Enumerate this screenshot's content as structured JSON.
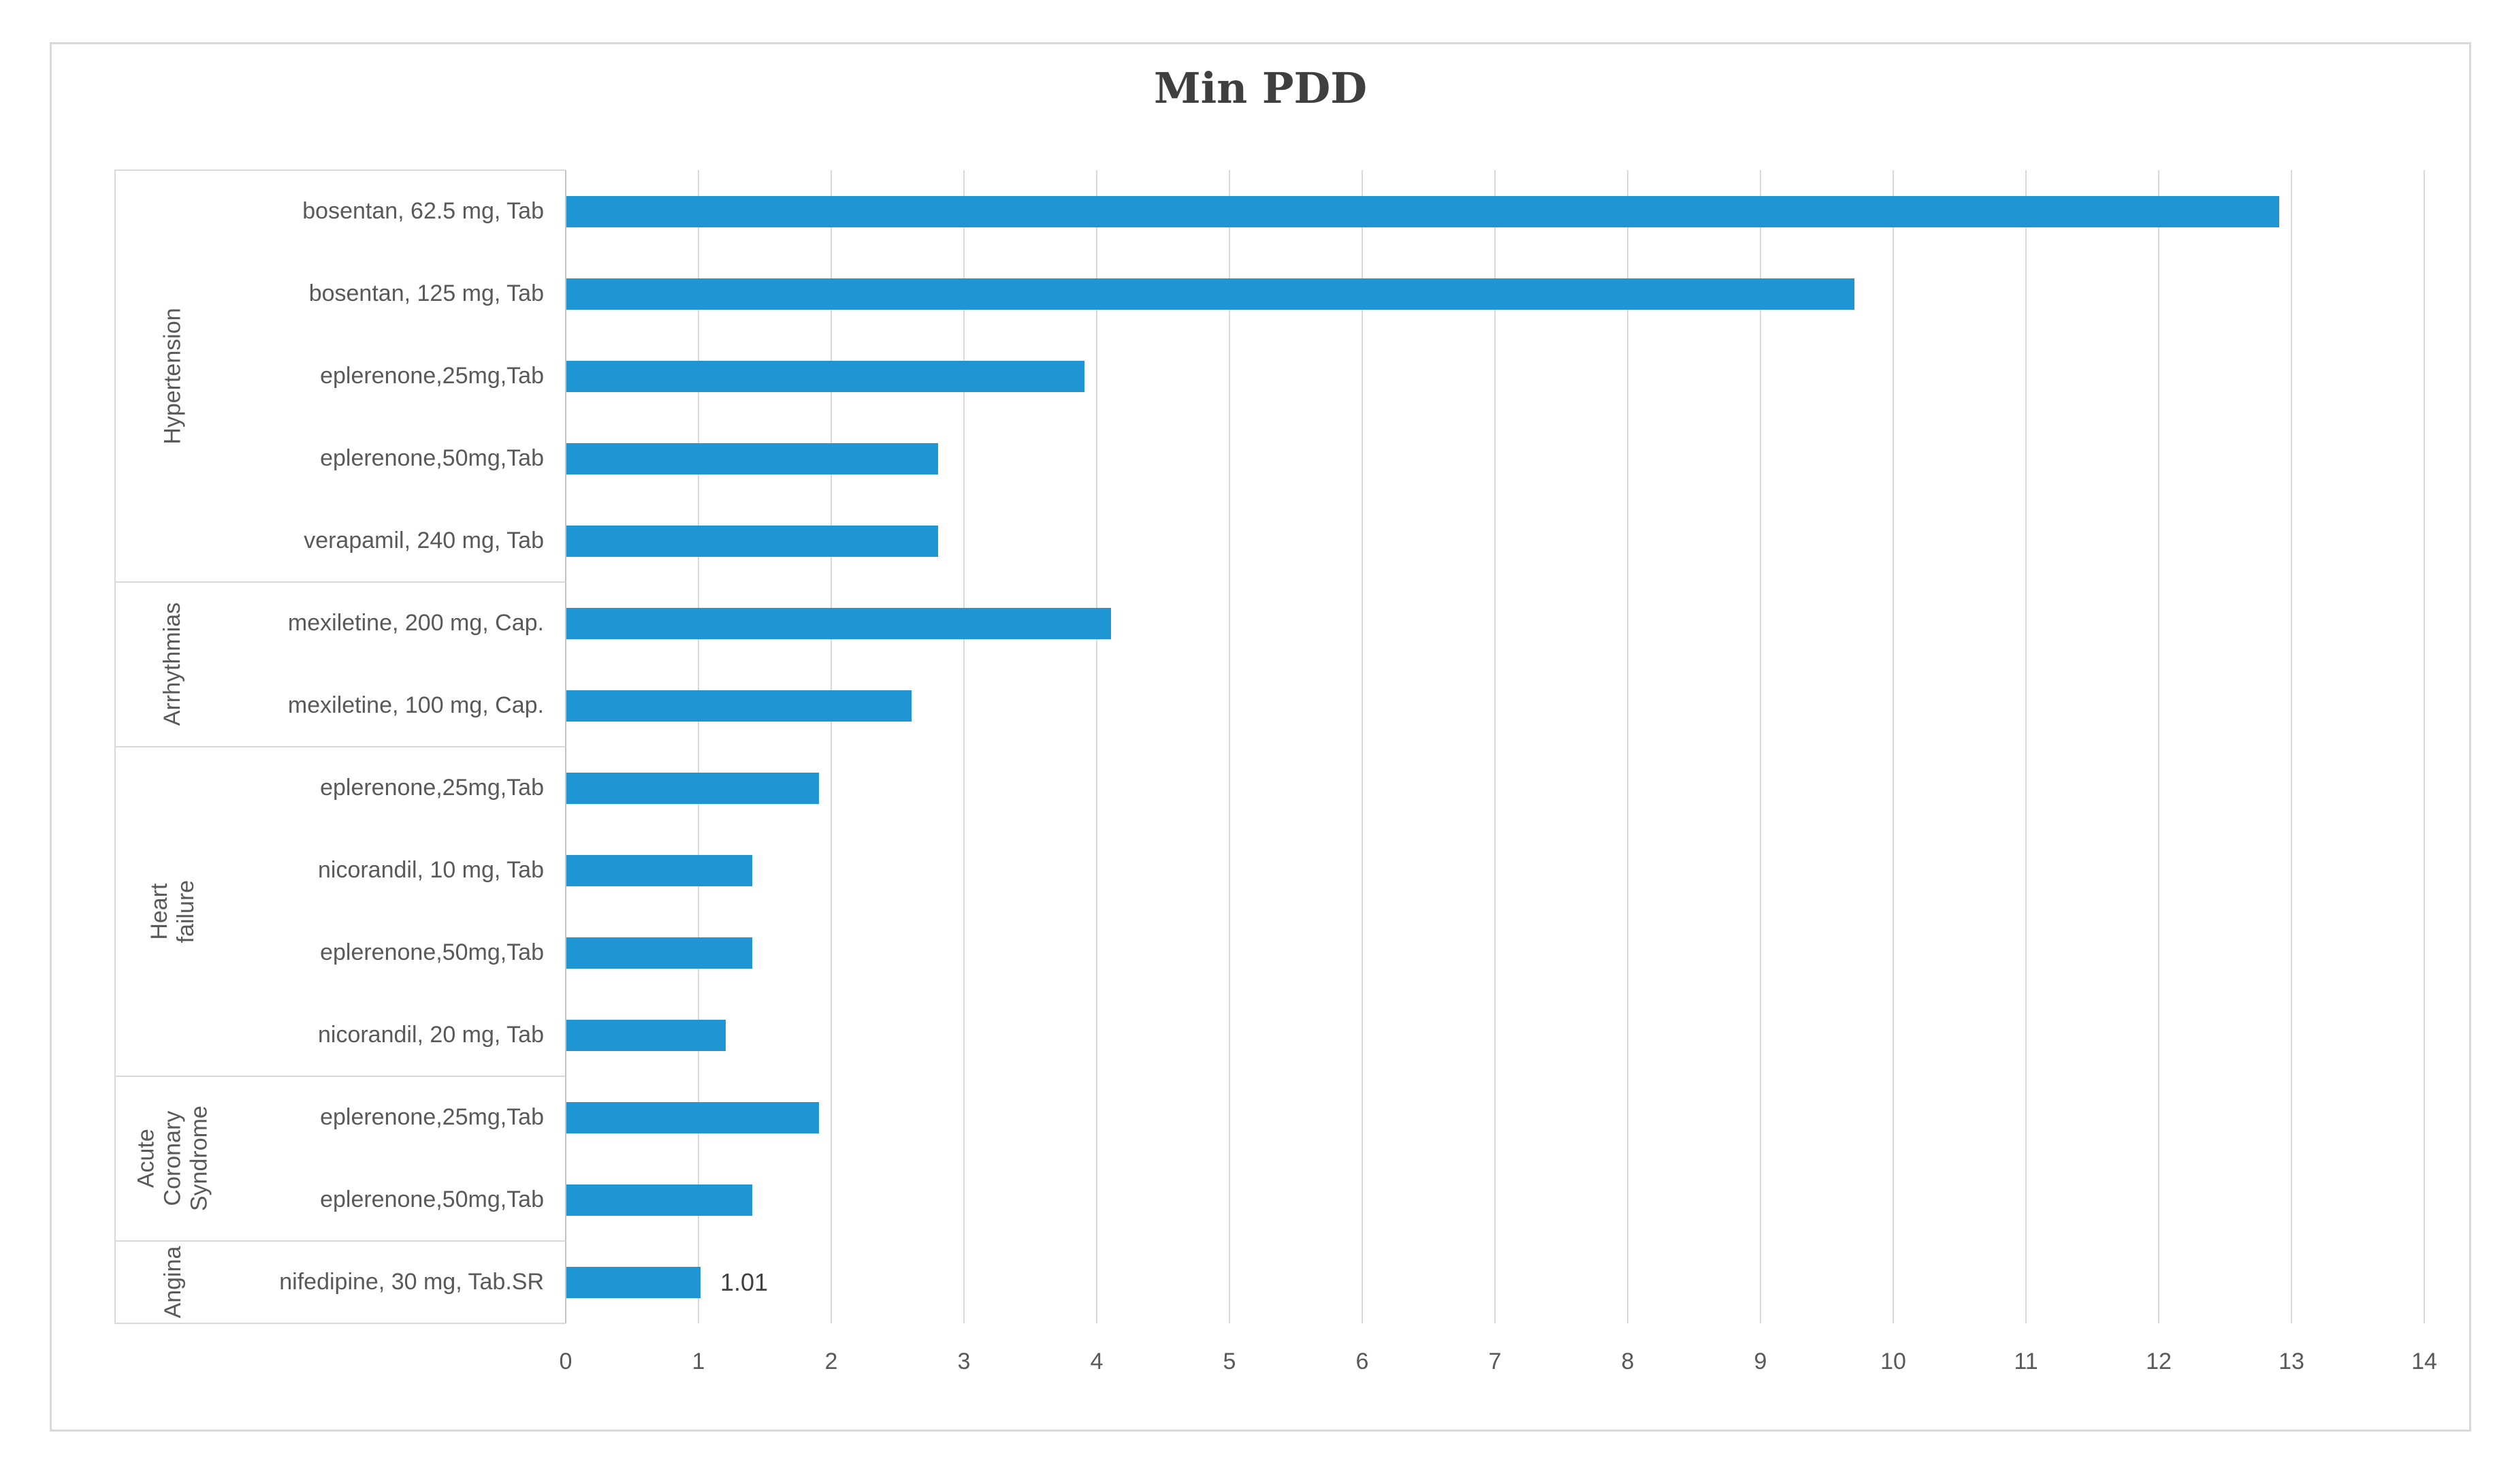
{
  "title": "Min PDD",
  "chart_data": {
    "type": "bar",
    "orientation": "horizontal",
    "title": "Min PDD",
    "xlabel": "",
    "ylabel": "",
    "xlim": [
      0,
      14
    ],
    "xticks": [
      0,
      1,
      2,
      3,
      4,
      5,
      6,
      7,
      8,
      9,
      10,
      11,
      12,
      13,
      14
    ],
    "grid": "vertical-major",
    "legend": "none",
    "groups": [
      {
        "label": "Hypertension",
        "items": [
          {
            "label": "bosentan, 62.5 mg, Tab",
            "value": 12.9
          },
          {
            "label": "bosentan, 125 mg, Tab",
            "value": 9.7
          },
          {
            "label": "eplerenone,25mg,Tab",
            "value": 3.9
          },
          {
            "label": "eplerenone,50mg,Tab",
            "value": 2.8
          },
          {
            "label": "verapamil, 240 mg, Tab",
            "value": 2.8
          }
        ]
      },
      {
        "label": "Arrhythmias",
        "items": [
          {
            "label": "mexiletine, 200 mg, Cap.",
            "value": 4.1
          },
          {
            "label": "mexiletine, 100 mg, Cap.",
            "value": 2.6
          }
        ]
      },
      {
        "label": "Heart failure",
        "items": [
          {
            "label": "eplerenone,25mg,Tab",
            "value": 1.9
          },
          {
            "label": "nicorandil, 10 mg, Tab",
            "value": 1.4
          },
          {
            "label": "eplerenone,50mg,Tab",
            "value": 1.4
          },
          {
            "label": "nicorandil, 20 mg, Tab",
            "value": 1.2
          }
        ]
      },
      {
        "label": "Acute Coronary Syndrome",
        "items": [
          {
            "label": "eplerenone,25mg,Tab",
            "value": 1.9
          },
          {
            "label": "eplerenone,50mg,Tab",
            "value": 1.4
          }
        ]
      },
      {
        "label": "Angina",
        "items": [
          {
            "label": "nifedipine, 30 mg, Tab.SR",
            "value": 1.01,
            "data_label": "1.01"
          }
        ]
      }
    ],
    "colors": {
      "bar": "#2095d3",
      "gridline": "#d9d9d9",
      "axis_line": "#c3c3c3",
      "separator": "#d9d9d9",
      "frame_border": "#d9d9d9",
      "label_text": "#595959",
      "title_text": "#3f3f3f",
      "data_label_text": "#404040"
    }
  }
}
